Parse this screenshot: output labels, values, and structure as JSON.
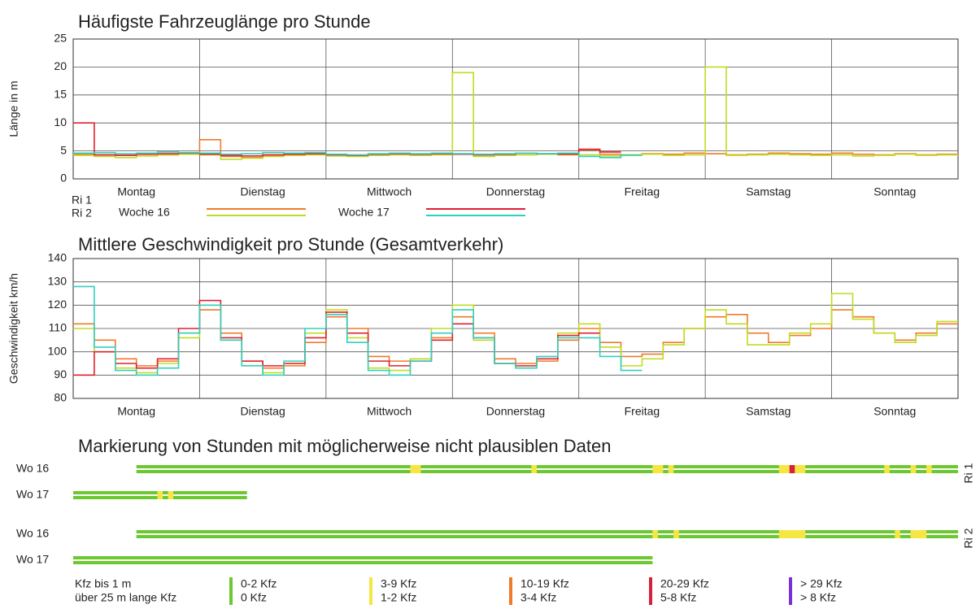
{
  "chart_data": [
    {
      "type": "step",
      "title": "Häufigste Fahrzeuglänge pro Stunde",
      "ylabel": "Länge in m",
      "days": [
        "Montag",
        "Dienstag",
        "Mittwoch",
        "Donnerstag",
        "Freitag",
        "Samstag",
        "Sonntag"
      ],
      "xlim": [
        0,
        168
      ],
      "xticks": [
        0,
        24,
        48,
        72,
        96,
        120,
        144,
        168
      ],
      "ylim": [
        0,
        25
      ],
      "yticks": [
        0,
        5,
        10,
        15,
        20,
        25
      ],
      "grid": true,
      "x": [
        0,
        4,
        8,
        12,
        16,
        20,
        24,
        28,
        32,
        36,
        40,
        44,
        48,
        52,
        56,
        60,
        64,
        68,
        72,
        76,
        80,
        84,
        88,
        92,
        96,
        100,
        104,
        108,
        112,
        116,
        120,
        124,
        128,
        132,
        136,
        140,
        144,
        148,
        152,
        156,
        160,
        164
      ],
      "series": [
        {
          "direction": "Ri 1",
          "week": "Woche 16",
          "color": "#f07a2a",
          "values": [
            4.4,
            4.3,
            4.2,
            4.4,
            4.3,
            4.5,
            7,
            4.0,
            3.8,
            4.2,
            4.3,
            4.5,
            4.3,
            4.2,
            4.4,
            4.5,
            4.3,
            4.4,
            4.5,
            4.3,
            4.4,
            4.6,
            4.4,
            4.5,
            5.2,
            4.4,
            4.3,
            4.5,
            4.4,
            4.6,
            4.5,
            4.3,
            4.4,
            4.6,
            4.5,
            4.4,
            4.6,
            4.4,
            4.3,
            4.5,
            4.3,
            4.4
          ]
        },
        {
          "direction": "Ri 2",
          "week": "Woche 16",
          "color": "#c0dc20",
          "values": [
            4.2,
            4.0,
            3.8,
            4.1,
            4.3,
            4.4,
            4.3,
            3.5,
            3.7,
            4.0,
            4.2,
            4.3,
            4.1,
            4.0,
            4.2,
            4.3,
            4.2,
            4.3,
            19,
            4.0,
            4.2,
            4.3,
            4.4,
            4.3,
            4.3,
            4.1,
            4.3,
            4.4,
            4.2,
            4.3,
            20,
            4.2,
            4.3,
            4.4,
            4.3,
            4.2,
            4.3,
            4.1,
            4.2,
            4.4,
            4.2,
            4.3
          ]
        },
        {
          "direction": "Ri 1",
          "week": "Woche 17",
          "color": "#e02030",
          "values": [
            10,
            4.3,
            4.2,
            4.4,
            4.5,
            4.6,
            4.4,
            4.2,
            4.1,
            4.3,
            4.4,
            4.5,
            4.3,
            4.2,
            4.4,
            4.5,
            4.4,
            4.5,
            4.4,
            4.3,
            4.4,
            4.6,
            4.5,
            4.4,
            5.3,
            4.8,
            null,
            null,
            null,
            null,
            null,
            null,
            null,
            null,
            null,
            null,
            null,
            null,
            null,
            null,
            null,
            null
          ]
        },
        {
          "direction": "Ri 2",
          "week": "Woche 17",
          "color": "#30d0c0",
          "values": [
            4.6,
            4.7,
            4.5,
            4.6,
            4.8,
            4.7,
            4.6,
            4.4,
            4.5,
            4.7,
            4.6,
            4.7,
            4.4,
            4.3,
            4.5,
            4.6,
            4.5,
            4.6,
            4.5,
            4.4,
            4.5,
            4.6,
            4.5,
            4.6,
            4.0,
            3.8,
            4.2,
            null,
            null,
            null,
            null,
            null,
            null,
            null,
            null,
            null,
            null,
            null,
            null,
            null,
            null,
            null
          ]
        }
      ]
    },
    {
      "type": "step",
      "title": "Mittlere Geschwindigkeit pro Stunde (Gesamtverkehr)",
      "ylabel": "Geschwindigkeit km/h",
      "days": [
        "Montag",
        "Dienstag",
        "Mittwoch",
        "Donnerstag",
        "Freitag",
        "Samstag",
        "Sonntag"
      ],
      "xlim": [
        0,
        168
      ],
      "xticks": [
        0,
        24,
        48,
        72,
        96,
        120,
        144,
        168
      ],
      "ylim": [
        80,
        140
      ],
      "yticks": [
        80,
        90,
        100,
        110,
        120,
        130,
        140
      ],
      "grid": true,
      "x": [
        0,
        4,
        8,
        12,
        16,
        20,
        24,
        28,
        32,
        36,
        40,
        44,
        48,
        52,
        56,
        60,
        64,
        68,
        72,
        76,
        80,
        84,
        88,
        92,
        96,
        100,
        104,
        108,
        112,
        116,
        120,
        124,
        128,
        132,
        136,
        140,
        144,
        148,
        152,
        156,
        160,
        164
      ],
      "series": [
        {
          "color": "#f07a2a",
          "values": [
            112,
            105,
            97,
            94,
            96,
            108,
            118,
            108,
            96,
            93,
            94,
            104,
            115,
            110,
            98,
            96,
            97,
            106,
            115,
            108,
            97,
            95,
            96,
            105,
            110,
            104,
            98,
            99,
            104,
            110,
            115,
            116,
            108,
            104,
            107,
            110,
            118,
            115,
            108,
            105,
            108,
            112
          ]
        },
        {
          "color": "#c0dc20",
          "values": [
            110,
            100,
            93,
            91,
            95,
            106,
            120,
            105,
            94,
            91,
            95,
            108,
            118,
            106,
            93,
            92,
            97,
            110,
            120,
            105,
            95,
            93,
            97,
            108,
            112,
            102,
            94,
            97,
            103,
            110,
            118,
            112,
            103,
            103,
            108,
            112,
            125,
            114,
            108,
            104,
            107,
            113
          ]
        },
        {
          "color": "#e02030",
          "values": [
            90,
            100,
            95,
            93,
            97,
            110,
            122,
            106,
            96,
            94,
            95,
            106,
            117,
            108,
            96,
            94,
            96,
            105,
            112,
            106,
            95,
            94,
            97,
            107,
            108,
            null,
            null,
            null,
            null,
            null,
            null,
            null,
            null,
            null,
            null,
            null,
            null,
            null,
            null,
            null,
            null,
            null
          ]
        },
        {
          "color": "#30d0c0",
          "values": [
            128,
            102,
            92,
            90,
            93,
            108,
            120,
            105,
            94,
            90,
            96,
            110,
            116,
            104,
            92,
            90,
            96,
            108,
            118,
            106,
            95,
            93,
            98,
            106,
            106,
            98,
            92,
            null,
            null,
            null,
            null,
            null,
            null,
            null,
            null,
            null,
            null,
            null,
            null,
            null,
            null,
            null
          ]
        }
      ]
    },
    {
      "type": "marker",
      "title": "Markierung von Stunden mit möglicherweise nicht plausiblen Daten",
      "xlim": [
        0,
        168
      ],
      "groups": [
        "Ri 1",
        "Ri 2"
      ],
      "rows": [
        {
          "label": "Wo 16",
          "group": 0,
          "start": 12,
          "end": 168,
          "flags": [
            {
              "from": 64,
              "to": 66,
              "color": "#f5e642"
            },
            {
              "from": 87,
              "to": 88,
              "color": "#f5e642"
            },
            {
              "from": 110,
              "to": 112,
              "color": "#f5e642"
            },
            {
              "from": 113,
              "to": 114,
              "color": "#f5e642"
            },
            {
              "from": 134,
              "to": 139,
              "color": "#f5e642"
            },
            {
              "from": 136,
              "to": 137,
              "color": "#d8203a"
            },
            {
              "from": 154,
              "to": 155,
              "color": "#f5e642"
            },
            {
              "from": 159,
              "to": 160,
              "color": "#f5e642"
            },
            {
              "from": 162,
              "to": 163,
              "color": "#f5e642"
            }
          ]
        },
        {
          "label": "Wo 17",
          "group": 0,
          "start": 0,
          "end": 33,
          "flags": [
            {
              "from": 16,
              "to": 17,
              "color": "#f5e642"
            },
            {
              "from": 18,
              "to": 19,
              "color": "#f5e642"
            }
          ]
        },
        {
          "label": "Wo 16",
          "group": 1,
          "start": 12,
          "end": 168,
          "flags": [
            {
              "from": 110,
              "to": 111,
              "color": "#f5e642"
            },
            {
              "from": 114,
              "to": 115,
              "color": "#f5e642"
            },
            {
              "from": 134,
              "to": 139,
              "color": "#f5e642"
            },
            {
              "from": 156,
              "to": 157,
              "color": "#f5e642"
            },
            {
              "from": 159,
              "to": 162,
              "color": "#f5e642"
            }
          ]
        },
        {
          "label": "Wo 17",
          "group": 1,
          "start": 0,
          "end": 110,
          "flags": []
        }
      ],
      "base_color": "#6cc830",
      "legend": {
        "labels": [
          "Kfz bis 1 m",
          "über 25 m lange Kfz"
        ],
        "classes": [
          {
            "color": "#6cc830",
            "labels": [
              "0-2 Kfz",
              "0 Kfz"
            ]
          },
          {
            "color": "#f5e642",
            "labels": [
              "3-9 Kfz",
              "1-2 Kfz"
            ]
          },
          {
            "color": "#f07a2a",
            "labels": [
              "10-19 Kfz",
              "3-4 Kfz"
            ]
          },
          {
            "color": "#d8203a",
            "labels": [
              "20-29 Kfz",
              "5-8 Kfz"
            ]
          },
          {
            "color": "#7a30d8",
            "labels": [
              "> 29 Kfz",
              "> 8 Kfz"
            ]
          }
        ]
      }
    }
  ]
}
